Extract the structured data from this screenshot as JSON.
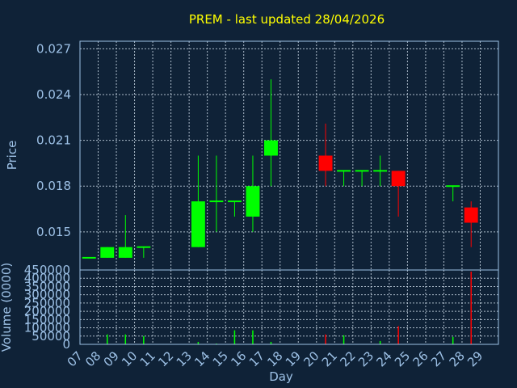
{
  "chart_data": [
    {
      "type": "candlestick",
      "title": "PREM - last updated 28/04/2026",
      "ylabel": "Price",
      "ylim": [
        0.0125,
        0.0275
      ],
      "yticks": [
        0.015,
        0.018,
        0.021,
        0.024,
        0.027
      ],
      "ytick_labels": [
        "0.015",
        "0.018",
        "0.021",
        "0.024",
        "0.027"
      ],
      "grid": true,
      "up_color": "#00ff00",
      "down_color": "#ff0000",
      "days": [
        "07",
        "08",
        "09",
        "10",
        "11",
        "12",
        "13",
        "14",
        "15",
        "16",
        "17",
        "18",
        "19",
        "20",
        "21",
        "22",
        "23",
        "24",
        "25",
        "26",
        "27",
        "28",
        "29"
      ],
      "candles": [
        {
          "day": "07",
          "open": 0.0133,
          "high": 0.0133,
          "low": 0.0133,
          "close": 0.0133
        },
        {
          "day": "08",
          "open": 0.0133,
          "high": 0.014,
          "low": 0.0133,
          "close": 0.014
        },
        {
          "day": "09",
          "open": 0.0133,
          "high": 0.0161,
          "low": 0.0133,
          "close": 0.014
        },
        {
          "day": "10",
          "open": 0.014,
          "high": 0.014,
          "low": 0.0133,
          "close": 0.014
        },
        {
          "day": "13",
          "open": 0.014,
          "high": 0.02,
          "low": 0.014,
          "close": 0.017
        },
        {
          "day": "14",
          "open": 0.017,
          "high": 0.02,
          "low": 0.015,
          "close": 0.017
        },
        {
          "day": "15",
          "open": 0.017,
          "high": 0.017,
          "low": 0.016,
          "close": 0.017
        },
        {
          "day": "16",
          "open": 0.016,
          "high": 0.02,
          "low": 0.015,
          "close": 0.018
        },
        {
          "day": "17",
          "open": 0.02,
          "high": 0.025,
          "low": 0.018,
          "close": 0.021
        },
        {
          "day": "20",
          "open": 0.02,
          "high": 0.0221,
          "low": 0.018,
          "close": 0.019
        },
        {
          "day": "21",
          "open": 0.019,
          "high": 0.019,
          "low": 0.018,
          "close": 0.019
        },
        {
          "day": "22",
          "open": 0.019,
          "high": 0.019,
          "low": 0.018,
          "close": 0.019
        },
        {
          "day": "23",
          "open": 0.019,
          "high": 0.02,
          "low": 0.018,
          "close": 0.019
        },
        {
          "day": "24",
          "open": 0.019,
          "high": 0.019,
          "low": 0.016,
          "close": 0.018
        },
        {
          "day": "27",
          "open": 0.018,
          "high": 0.018,
          "low": 0.017,
          "close": 0.018
        },
        {
          "day": "28",
          "open": 0.0166,
          "high": 0.017,
          "low": 0.014,
          "close": 0.0156
        }
      ]
    },
    {
      "type": "bar",
      "xlabel": "Day",
      "ylabel": "Volume (0000)",
      "ylim": [
        0,
        450000
      ],
      "yticks": [
        0,
        50000,
        100000,
        150000,
        200000,
        250000,
        300000,
        350000,
        400000,
        450000
      ],
      "ytick_labels": [
        "0",
        "50000",
        "100000",
        "150000",
        "200000",
        "250000",
        "300000",
        "350000",
        "400000",
        "450000"
      ],
      "grid": true,
      "volumes": [
        {
          "day": "08",
          "value": 60000,
          "color": "#00ff00"
        },
        {
          "day": "09",
          "value": 60000,
          "color": "#00ff00"
        },
        {
          "day": "10",
          "value": 50000,
          "color": "#00ff00"
        },
        {
          "day": "13",
          "value": 15000,
          "color": "#00ff00"
        },
        {
          "day": "14",
          "value": 5000,
          "color": "#00ff00"
        },
        {
          "day": "15",
          "value": 85000,
          "color": "#00ff00"
        },
        {
          "day": "16",
          "value": 85000,
          "color": "#00ff00"
        },
        {
          "day": "17",
          "value": 15000,
          "color": "#00ff00"
        },
        {
          "day": "20",
          "value": 60000,
          "color": "#ff0000"
        },
        {
          "day": "21",
          "value": 55000,
          "color": "#00ff00"
        },
        {
          "day": "23",
          "value": 20000,
          "color": "#00ff00"
        },
        {
          "day": "24",
          "value": 110000,
          "color": "#ff0000"
        },
        {
          "day": "27",
          "value": 45000,
          "color": "#00ff00"
        },
        {
          "day": "28",
          "value": 440000,
          "color": "#ff0000"
        }
      ]
    }
  ]
}
